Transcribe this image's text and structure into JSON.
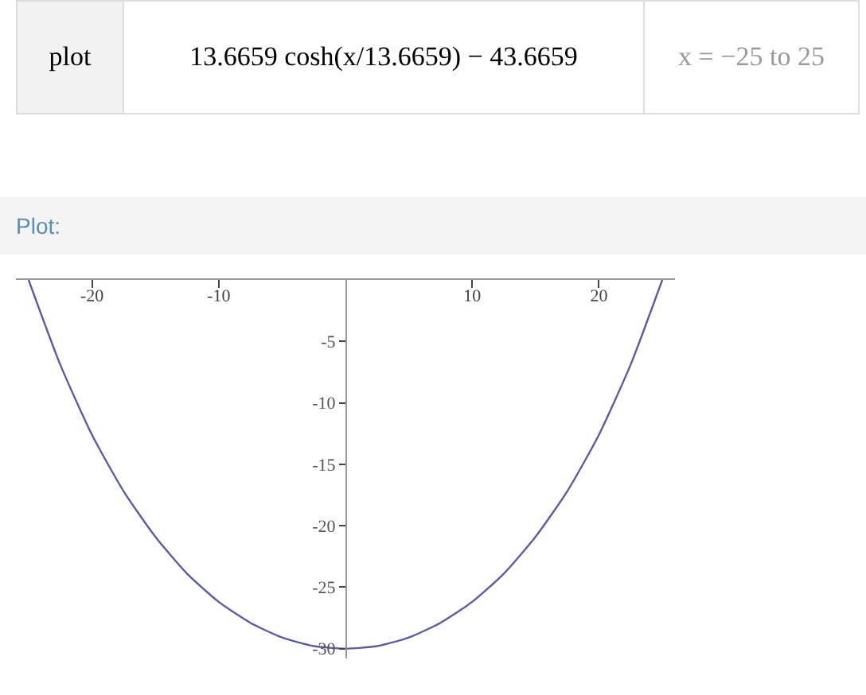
{
  "chart_data": {
    "type": "line",
    "annotations": [
      "plot",
      "13.6659 cosh(x/13.6659) − 43.6659",
      "x = −25 to 25",
      "Plot:"
    ],
    "x": [
      -25,
      -22.5,
      -20,
      -17.5,
      -15,
      -12.5,
      -10,
      -7.5,
      -5,
      -2.5,
      0,
      2.5,
      5,
      7.5,
      10,
      12.5,
      15,
      17.5,
      20,
      22.5,
      25
    ],
    "values": [
      0,
      -6.9,
      -12.6,
      -17.2,
      -20.9,
      -23.9,
      -26.2,
      -27.9,
      -29.1,
      -29.8,
      -30,
      -29.8,
      -29.1,
      -27.9,
      -26.2,
      -23.9,
      -20.9,
      -17.2,
      -12.6,
      -6.9,
      0
    ],
    "color": "#5b5ba8",
    "xlim": [
      -26,
      26
    ],
    "ylim": [
      -30.8,
      0
    ],
    "xticks": [
      -20,
      -10,
      10,
      20
    ],
    "yticks": [
      -5,
      -10,
      -15,
      -20,
      -25,
      -30
    ]
  }
}
